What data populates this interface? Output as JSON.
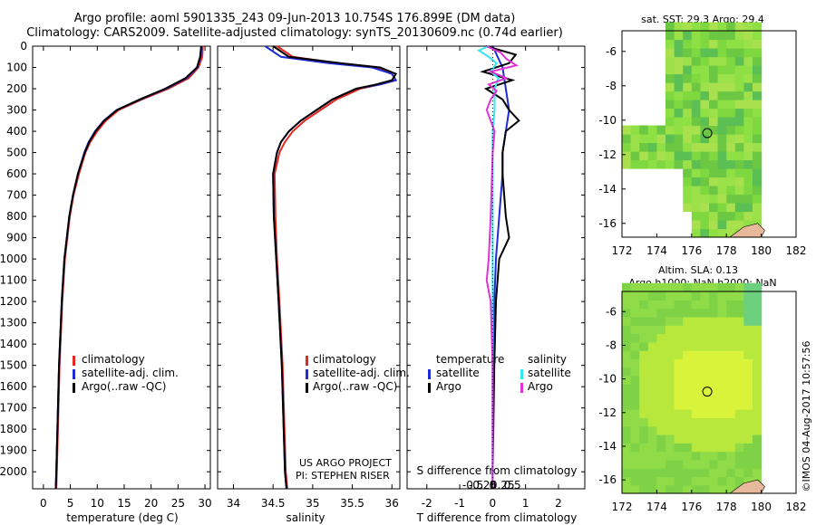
{
  "header": {
    "title_line1": "Argo profile: aoml 5901335_243 09-Jun-2013 10.754S 176.899E (DM data)",
    "title_line2": "Climatology: CARS2009. Satellite-adjusted climatology: synTS_20130609.nc (0.74d earlier)"
  },
  "colors": {
    "climatology": "#e8261f",
    "satellite": "#1f2bd6",
    "argo": "#000000",
    "satellite_s": "#33e6f0",
    "argo_s": "#e033d6"
  },
  "chart_data": [
    {
      "type": "line",
      "id": "temperature",
      "xlabel": "temperature (deg C)",
      "ylabel": "",
      "xlim": [
        -2,
        31
      ],
      "ylim": [
        2080,
        0
      ],
      "xticks": [
        0,
        5,
        10,
        15,
        20,
        25,
        30
      ],
      "yticks": [
        0,
        100,
        200,
        300,
        400,
        500,
        600,
        700,
        800,
        900,
        1000,
        1100,
        1200,
        1300,
        1400,
        1500,
        1600,
        1700,
        1800,
        1900,
        2000
      ],
      "legend": [
        "climatology",
        "satellite-adj. clim.",
        "Argo(..raw -QC)"
      ],
      "legend_position": "lower-center",
      "series": [
        {
          "name": "climatology",
          "depth": [
            0,
            50,
            100,
            150,
            200,
            250,
            300,
            350,
            400,
            450,
            500,
            600,
            700,
            800,
            1000,
            1200,
            1500,
            2000,
            2080
          ],
          "values": [
            29.6,
            29.5,
            28.8,
            27.0,
            23.2,
            18.3,
            14.0,
            11.6,
            10.0,
            8.7,
            7.8,
            6.6,
            5.6,
            4.9,
            4.0,
            3.5,
            3.0,
            2.5,
            2.4
          ]
        },
        {
          "name": "satellite-adj. clim.",
          "depth": [
            0,
            50,
            100,
            150,
            200,
            250,
            300,
            350,
            400,
            450,
            500,
            600,
            700,
            800,
            1000,
            1200,
            1500,
            2000,
            2080
          ],
          "values": [
            29.4,
            29.2,
            28.6,
            26.6,
            22.8,
            18.0,
            13.6,
            11.2,
            9.6,
            8.4,
            7.6,
            6.4,
            5.5,
            4.8,
            3.9,
            3.4,
            2.9,
            2.4,
            2.3
          ]
        },
        {
          "name": "Argo(..raw -QC)",
          "depth": [
            0,
            50,
            100,
            150,
            200,
            250,
            300,
            350,
            400,
            450,
            500,
            600,
            700,
            800,
            1000,
            1200,
            1500,
            2000,
            2080
          ],
          "values": [
            29.3,
            29.1,
            28.5,
            26.4,
            22.6,
            17.9,
            13.7,
            11.3,
            9.7,
            8.5,
            7.7,
            6.4,
            5.5,
            4.8,
            3.9,
            3.4,
            2.9,
            2.4,
            2.3
          ]
        }
      ]
    },
    {
      "type": "line",
      "id": "salinity",
      "xlabel": "salinity",
      "xlim": [
        33.8,
        36.1
      ],
      "ylim": [
        2080,
        0
      ],
      "xticks": [
        34,
        34.5,
        35,
        35.5,
        36
      ],
      "legend": [
        "climatology",
        "satellite-adj. clim.",
        "Argo(..raw -QC)"
      ],
      "legend_position": "lower-center",
      "annotation": [
        "US ARGO PROJECT",
        "PI: STEPHEN RISER"
      ],
      "series": [
        {
          "name": "climatology",
          "depth": [
            0,
            50,
            80,
            100,
            130,
            160,
            180,
            200,
            250,
            300,
            350,
            400,
            450,
            500,
            600,
            800,
            1000,
            1200,
            1500,
            2000,
            2080
          ],
          "values": [
            34.55,
            34.75,
            35.3,
            35.8,
            36.0,
            36.05,
            35.85,
            35.6,
            35.3,
            35.1,
            34.9,
            34.75,
            34.65,
            34.58,
            34.52,
            34.53,
            34.55,
            34.58,
            34.62,
            34.66,
            34.68
          ]
        },
        {
          "name": "satellite-adj. clim.",
          "depth": [
            0,
            50,
            80,
            100,
            130,
            160,
            180,
            200,
            250,
            300,
            350,
            400,
            450,
            500,
            600,
            800,
            1000,
            1200,
            1500,
            2000,
            2080
          ],
          "values": [
            34.4,
            34.6,
            35.2,
            35.75,
            36.0,
            36.05,
            35.85,
            35.55,
            35.25,
            35.05,
            34.85,
            34.7,
            34.6,
            34.55,
            34.5,
            34.51,
            34.54,
            34.57,
            34.61,
            34.65,
            34.67
          ]
        },
        {
          "name": "Argo(..raw -QC)",
          "depth": [
            0,
            50,
            80,
            100,
            130,
            160,
            180,
            200,
            250,
            300,
            350,
            400,
            450,
            500,
            600,
            800,
            1000,
            1200,
            1500,
            2000,
            2080
          ],
          "values": [
            34.5,
            34.7,
            35.35,
            35.85,
            36.05,
            36.0,
            35.8,
            35.55,
            35.25,
            35.05,
            34.85,
            34.7,
            34.6,
            34.55,
            34.5,
            34.51,
            34.54,
            34.57,
            34.61,
            34.65,
            34.67
          ]
        }
      ]
    },
    {
      "type": "line",
      "id": "difference",
      "xlabel": "T difference from climatology",
      "xlabel_top": "S difference from climatology",
      "xlim": [
        -2.6,
        2.8
      ],
      "ylim": [
        2080,
        0
      ],
      "xticks": [
        -2,
        -1,
        0,
        1,
        2
      ],
      "s_ticks": [
        -0.5,
        -0.25,
        0,
        0.25,
        0.5
      ],
      "s_tick_labels": [
        "-0.5",
        "-0.25",
        "0",
        "0.25",
        "0.5"
      ],
      "legend_temperature_title": "temperature",
      "legend_salinity_title": "salinity",
      "legend_temperature": [
        "satellite",
        "Argo"
      ],
      "legend_salinity": [
        "satellite",
        "Argo"
      ],
      "series": [
        {
          "name": "T satellite",
          "depth": [
            0,
            100,
            200,
            300,
            400,
            500,
            600,
            800,
            1000,
            1200,
            1500,
            2000,
            2080
          ],
          "values": [
            0.0,
            0.3,
            0.4,
            0.5,
            0.4,
            0.3,
            0.3,
            0.2,
            0.1,
            0.05,
            0.0,
            0.0,
            0.0
          ]
        },
        {
          "name": "T Argo",
          "depth": [
            0,
            40,
            80,
            120,
            160,
            200,
            250,
            300,
            350,
            400,
            500,
            600,
            800,
            900,
            1000,
            1200,
            1500,
            2000,
            2080
          ],
          "values": [
            -0.2,
            0.7,
            0.5,
            -0.3,
            0.6,
            -0.2,
            0.3,
            0.5,
            0.8,
            0.4,
            0.3,
            0.3,
            0.4,
            0.5,
            0.2,
            0.1,
            0.05,
            0.0,
            0.0
          ]
        },
        {
          "name": "S satellite",
          "depth": [
            0,
            20,
            50,
            80,
            120,
            150,
            200,
            300,
            400,
            500,
            800,
            1000,
            1500,
            2000,
            2080
          ],
          "values": [
            -0.1,
            -0.35,
            -0.1,
            0.1,
            -0.05,
            0.15,
            0.05,
            0.05,
            0.0,
            0.0,
            0.0,
            0.0,
            0.0,
            0.0,
            0.0
          ]
        },
        {
          "name": "S Argo",
          "depth": [
            0,
            30,
            60,
            90,
            120,
            150,
            180,
            210,
            250,
            300,
            400,
            500,
            800,
            1000,
            1100,
            1200,
            1500,
            2000,
            2080
          ],
          "values": [
            -0.15,
            0.2,
            0.35,
            0.6,
            -0.05,
            0.35,
            -0.1,
            0.1,
            -0.05,
            -0.15,
            0.05,
            0.0,
            -0.05,
            -0.1,
            -0.15,
            -0.05,
            0.0,
            0.0,
            0.0
          ]
        }
      ]
    },
    {
      "type": "heatmap",
      "id": "sst_map",
      "title": "sat. SST: 29.3 Argo: 29.4",
      "xlim": [
        172,
        182
      ],
      "ylim": [
        -16.8,
        -4.8
      ],
      "xticks": [
        172,
        174,
        176,
        178,
        180,
        182
      ],
      "yticks": [
        -6,
        -8,
        -10,
        -12,
        -14,
        -16
      ],
      "marker": {
        "lon": 176.9,
        "lat": -10.75
      }
    },
    {
      "type": "heatmap",
      "id": "sla_map",
      "title": "Altim. SLA: 0.13",
      "subtitle": "Argo h1000: NaN h2000: NaN",
      "xlim": [
        172,
        182
      ],
      "ylim": [
        -16.8,
        -4.8
      ],
      "xticks": [
        172,
        174,
        176,
        178,
        180,
        182
      ],
      "yticks": [
        -6,
        -8,
        -10,
        -12,
        -14,
        -16
      ],
      "marker": {
        "lon": 176.9,
        "lat": -10.75
      }
    }
  ],
  "footer": {
    "stamp": "©IMOS 04-Aug-2017 10:57:56"
  }
}
